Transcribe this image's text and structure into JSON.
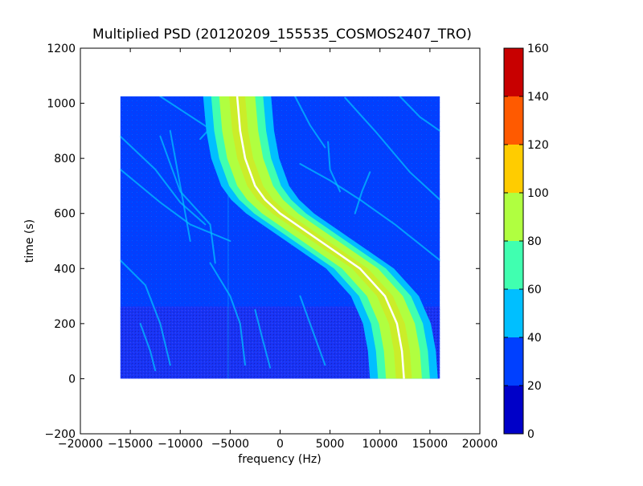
{
  "chart_data": {
    "type": "heatmap",
    "title": "Multiplied PSD (20120209_155535_COSMOS2407_TRO)",
    "xlabel": "frequency (Hz)",
    "ylabel": "time (s)",
    "xlim": [
      -20000,
      20000
    ],
    "ylim": [
      -200,
      1200
    ],
    "x_ticks": [
      -20000,
      -15000,
      -10000,
      -5000,
      0,
      5000,
      10000,
      15000,
      20000
    ],
    "x_tick_labels": [
      "−20000",
      "−15000",
      "−10000",
      "−5000",
      "0",
      "5000",
      "10000",
      "15000",
      "20000"
    ],
    "y_ticks": [
      -200,
      0,
      200,
      400,
      600,
      800,
      1000,
      1200
    ],
    "y_tick_labels": [
      "−200",
      "0",
      "200",
      "400",
      "600",
      "800",
      "1000",
      "1200"
    ],
    "data_extent": {
      "x": [
        -16000,
        16000
      ],
      "y": [
        0,
        1025
      ]
    },
    "colorbar": {
      "levels": [
        0,
        20,
        40,
        60,
        80,
        100,
        120,
        140,
        160
      ],
      "tick_labels": [
        "0",
        "20",
        "40",
        "60",
        "80",
        "100",
        "120",
        "140",
        "160"
      ],
      "colors": [
        "#0000c8",
        "#0040ff",
        "#00bfff",
        "#40ffb0",
        "#b0ff40",
        "#ffcc00",
        "#ff5a00",
        "#c80000"
      ]
    },
    "background_level_color": "#0040ff",
    "lower_band_color": "#2a2aee",
    "main_trace": {
      "points": [
        {
          "t": 0,
          "f": 12400
        },
        {
          "t": 100,
          "f": 12200
        },
        {
          "t": 200,
          "f": 11700
        },
        {
          "t": 300,
          "f": 10500
        },
        {
          "t": 400,
          "f": 8000
        },
        {
          "t": 450,
          "f": 6000
        },
        {
          "t": 500,
          "f": 4000
        },
        {
          "t": 550,
          "f": 2000
        },
        {
          "t": 600,
          "f": 0
        },
        {
          "t": 650,
          "f": -1500
        },
        {
          "t": 700,
          "f": -2500
        },
        {
          "t": 800,
          "f": -3500
        },
        {
          "t": 900,
          "f": -4000
        },
        {
          "t": 1025,
          "f": -4300
        }
      ],
      "band_half_widths": {
        "cyan": 3400,
        "teal": 2600,
        "green": 1800,
        "yellow": 800
      }
    },
    "faint_traces": [
      [
        {
          "t": 1025,
          "f": -12000
        },
        {
          "t": 930,
          "f": -8000
        },
        {
          "t": 860,
          "f": -5000
        },
        {
          "t": 830,
          "f": -3000
        }
      ],
      [
        {
          "t": 880,
          "f": -16000
        },
        {
          "t": 760,
          "f": -12500
        },
        {
          "t": 640,
          "f": -10000
        },
        {
          "t": 560,
          "f": -7500
        }
      ],
      [
        {
          "t": 760,
          "f": -16000
        },
        {
          "t": 640,
          "f": -12000
        },
        {
          "t": 560,
          "f": -9000
        },
        {
          "t": 500,
          "f": -5000
        }
      ],
      [
        {
          "t": 430,
          "f": -16000
        },
        {
          "t": 340,
          "f": -13500
        },
        {
          "t": 200,
          "f": -12000
        },
        {
          "t": 50,
          "f": -11000
        }
      ],
      [
        {
          "t": 900,
          "f": -11000
        },
        {
          "t": 700,
          "f": -10000
        },
        {
          "t": 500,
          "f": -9000
        }
      ],
      [
        {
          "t": 420,
          "f": -7000
        },
        {
          "t": 300,
          "f": -5000
        },
        {
          "t": 200,
          "f": -4000
        },
        {
          "t": 50,
          "f": -3500
        }
      ],
      [
        {
          "t": 880,
          "f": -12000
        },
        {
          "t": 680,
          "f": -10000
        },
        {
          "t": 560,
          "f": -7000
        },
        {
          "t": 420,
          "f": -6500
        }
      ],
      [
        {
          "t": 1025,
          "f": 1500
        },
        {
          "t": 920,
          "f": 3000
        },
        {
          "t": 840,
          "f": 4500
        }
      ],
      [
        {
          "t": 1020,
          "f": 6500
        },
        {
          "t": 900,
          "f": 9500
        },
        {
          "t": 750,
          "f": 13000
        },
        {
          "t": 650,
          "f": 16000
        }
      ],
      [
        {
          "t": 1025,
          "f": 12000
        },
        {
          "t": 950,
          "f": 14000
        },
        {
          "t": 900,
          "f": 16000
        }
      ],
      [
        {
          "t": 780,
          "f": 2000
        },
        {
          "t": 720,
          "f": 5000
        },
        {
          "t": 650,
          "f": 8000
        },
        {
          "t": 560,
          "f": 11500
        },
        {
          "t": 430,
          "f": 16000
        }
      ],
      [
        {
          "t": 750,
          "f": 9000
        },
        {
          "t": 680,
          "f": 8200
        },
        {
          "t": 600,
          "f": 7500
        }
      ],
      [
        {
          "t": 860,
          "f": 4800
        },
        {
          "t": 760,
          "f": 5000
        },
        {
          "t": 680,
          "f": 6000
        }
      ],
      [
        {
          "t": 800,
          "f": -1000
        },
        {
          "t": 700,
          "f": 0
        },
        {
          "t": 600,
          "f": 2000
        }
      ],
      [
        {
          "t": 300,
          "f": 2000
        },
        {
          "t": 200,
          "f": 3000
        },
        {
          "t": 100,
          "f": 4000
        },
        {
          "t": 50,
          "f": 4500
        }
      ],
      [
        {
          "t": 250,
          "f": -2500
        },
        {
          "t": 150,
          "f": -1800
        },
        {
          "t": 40,
          "f": -1000
        }
      ],
      [
        {
          "t": 200,
          "f": -14000
        },
        {
          "t": 100,
          "f": -13000
        },
        {
          "t": 30,
          "f": -12500
        }
      ],
      [
        {
          "t": 1000,
          "f": -6500
        },
        {
          "t": 930,
          "f": -2500
        },
        {
          "t": 900,
          "f": -2000
        }
      ],
      [
        {
          "t": 1000,
          "f": -1500
        },
        {
          "t": 930,
          "f": -6500
        },
        {
          "t": 870,
          "f": -8000
        }
      ]
    ]
  }
}
